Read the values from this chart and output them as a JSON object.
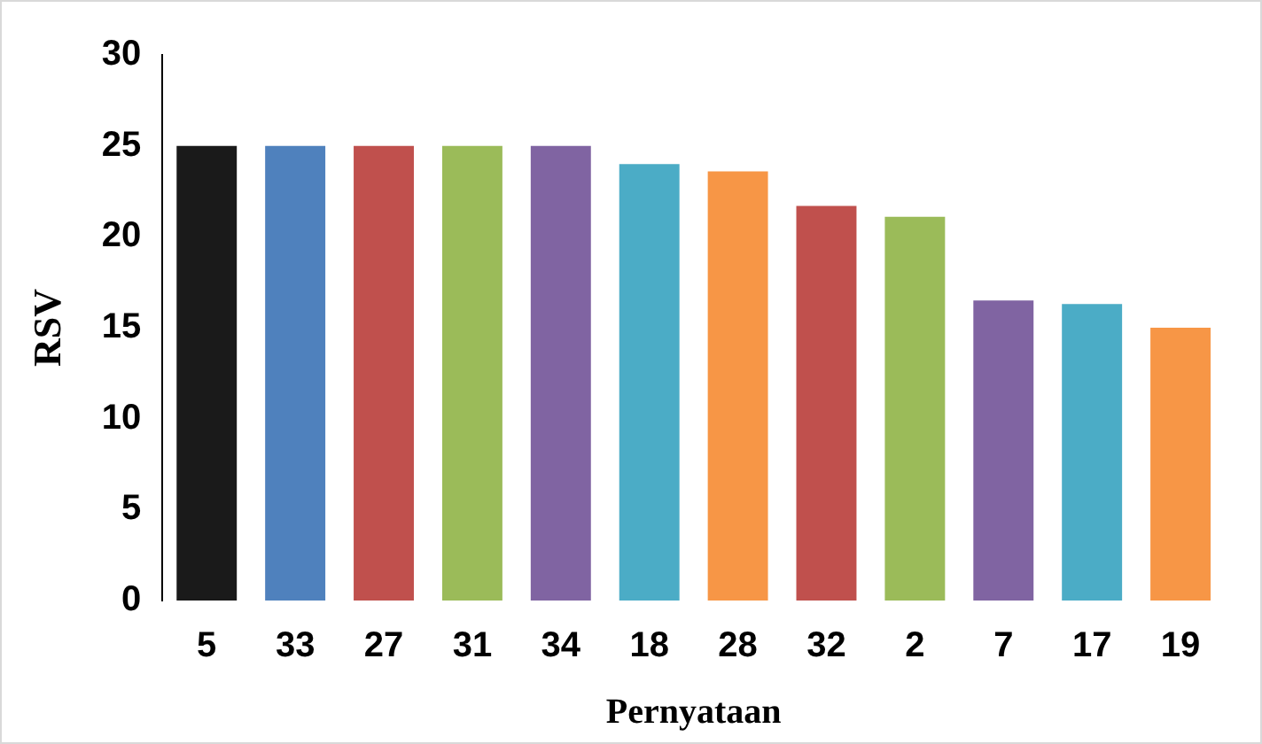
{
  "chart_data": {
    "type": "bar",
    "xlabel": "Pernyataan",
    "ylabel": "RSV",
    "categories": [
      "5",
      "33",
      "27",
      "31",
      "34",
      "18",
      "28",
      "32",
      "2",
      "7",
      "17",
      "19"
    ],
    "values": [
      25,
      25,
      25,
      25,
      25,
      24,
      23.6,
      21.7,
      21.1,
      16.5,
      16.3,
      15
    ],
    "colors": [
      "#1a1a1a",
      "#4f81bd",
      "#c0504d",
      "#9bbb59",
      "#8064a2",
      "#4bacc6",
      "#f79646",
      "#c0504d",
      "#9bbb59",
      "#8064a2",
      "#4bacc6",
      "#f79646"
    ],
    "ylim": [
      0,
      30
    ],
    "yticks": [
      0,
      5,
      10,
      15,
      20,
      25,
      30
    ],
    "grid": false,
    "legend": false
  }
}
